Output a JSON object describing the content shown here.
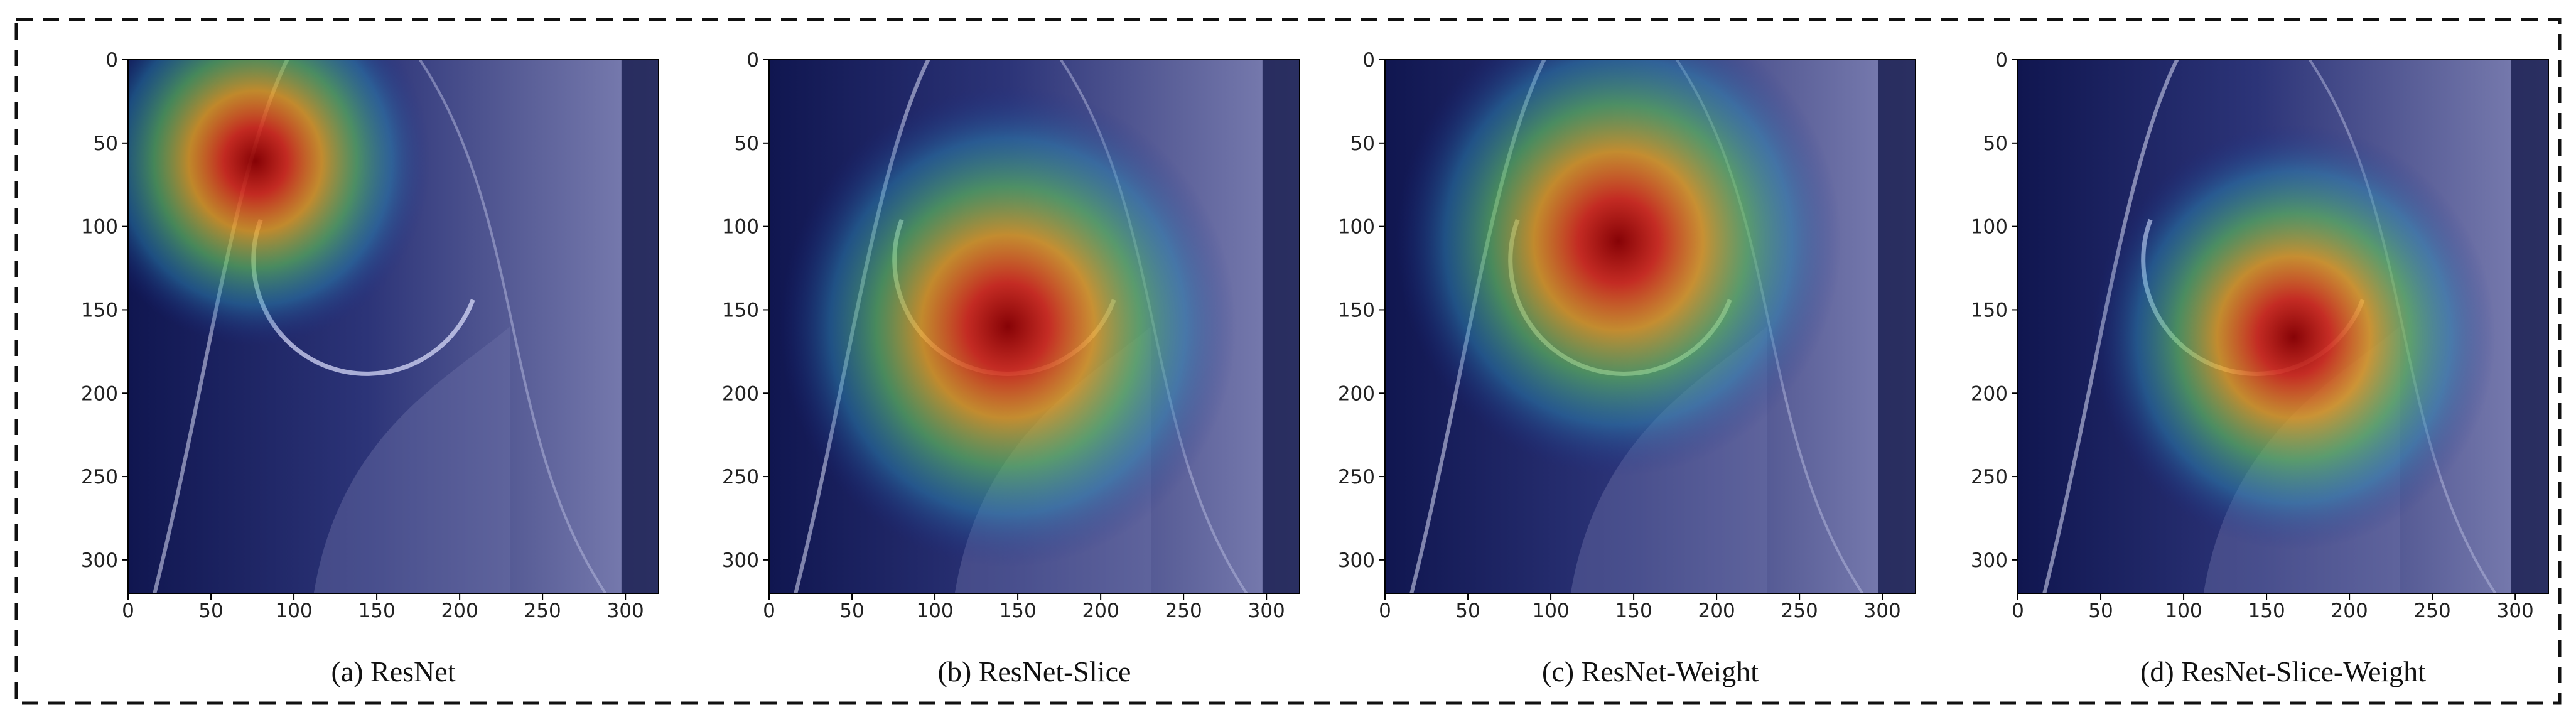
{
  "chart_data": [
    {
      "type": "image",
      "caption": "(a) ResNet",
      "xlim": [
        0,
        320
      ],
      "ylim": [
        320,
        0
      ],
      "xticks": [
        0,
        50,
        100,
        150,
        200,
        250,
        300
      ],
      "yticks": [
        0,
        50,
        100,
        150,
        200,
        250,
        300
      ]
    },
    {
      "type": "image",
      "caption": "(b) ResNet-Slice",
      "xlim": [
        0,
        320
      ],
      "ylim": [
        320,
        0
      ],
      "xticks": [
        0,
        50,
        100,
        150,
        200,
        250,
        300
      ],
      "yticks": [
        0,
        50,
        100,
        150,
        200,
        250,
        300
      ]
    },
    {
      "type": "image",
      "caption": "(c) ResNet-Weight",
      "xlim": [
        0,
        320
      ],
      "ylim": [
        320,
        0
      ],
      "xticks": [
        0,
        50,
        100,
        150,
        200,
        250,
        300
      ],
      "yticks": [
        0,
        50,
        100,
        150,
        200,
        250,
        300
      ]
    },
    {
      "type": "image",
      "caption": "(d) ResNet-Slice-Weight",
      "xlim": [
        0,
        320
      ],
      "ylim": [
        320,
        0
      ],
      "xticks": [
        0,
        50,
        100,
        150,
        200,
        250,
        300
      ],
      "yticks": [
        0,
        50,
        100,
        150,
        200,
        250,
        300
      ]
    }
  ]
}
